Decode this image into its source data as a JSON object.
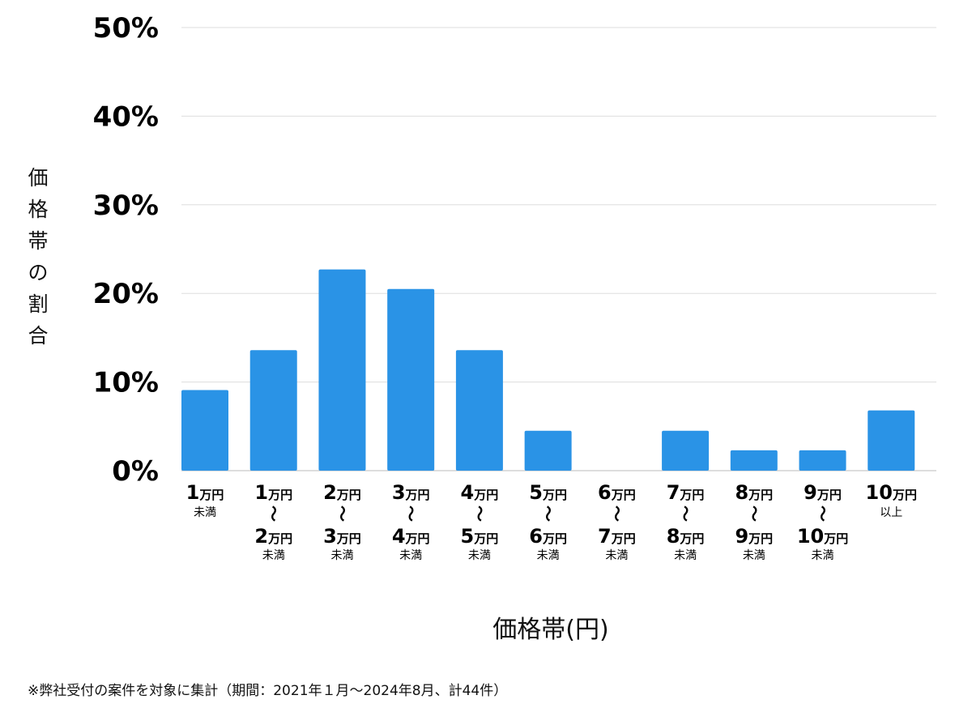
{
  "chart_data": {
    "type": "bar",
    "ylabel": "価格帯の割合",
    "xlabel": "価格帯(円)",
    "ylim": [
      0,
      50
    ],
    "yticks": [
      "0%",
      "10%",
      "20%",
      "30%",
      "40%",
      "50%"
    ],
    "grid": true,
    "bar_color": "#2a93e6",
    "unit": "万円",
    "range_mark": "〜",
    "categories": [
      {
        "from": "1",
        "note": "未満"
      },
      {
        "from": "1",
        "to": "2",
        "note": "未満"
      },
      {
        "from": "2",
        "to": "3",
        "note": "未満"
      },
      {
        "from": "3",
        "to": "4",
        "note": "未満"
      },
      {
        "from": "4",
        "to": "5",
        "note": "未満"
      },
      {
        "from": "5",
        "to": "6",
        "note": "未満"
      },
      {
        "from": "6",
        "to": "7",
        "note": "未満"
      },
      {
        "from": "7",
        "to": "8",
        "note": "未満"
      },
      {
        "from": "8",
        "to": "9",
        "note": "未満"
      },
      {
        "from": "9",
        "to": "10",
        "note": "未満"
      },
      {
        "from": "10",
        "note": "以上"
      }
    ],
    "values": [
      9.1,
      13.6,
      22.7,
      20.5,
      13.6,
      4.5,
      0,
      4.5,
      2.3,
      2.3,
      6.8
    ]
  },
  "footnote": "※弊社受付の案件を対象に集計（期間：2021年１月〜2024年8月、計44件）"
}
